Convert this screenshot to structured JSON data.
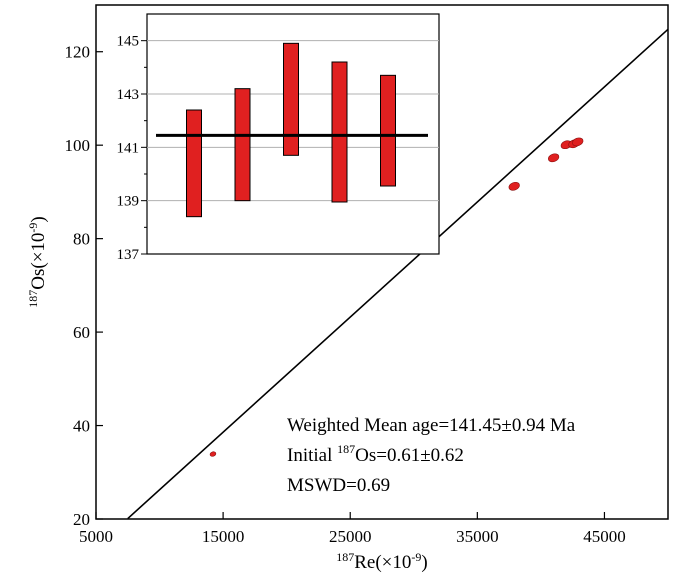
{
  "chart_data": [
    {
      "type": "scatter",
      "xlabel": {
        "sup": "187",
        "text": "Re(×10",
        "exp": "-9",
        "close": ")"
      },
      "ylabel": {
        "sup": "187",
        "text": "Os(×10",
        "exp": "-9",
        "close": ")"
      },
      "xlim": [
        5000,
        50000
      ],
      "ylim": [
        20,
        130
      ],
      "xticks": [
        "5000",
        "15000",
        "25000",
        "35000",
        "45000"
      ],
      "xtick_values": [
        5000,
        15000,
        25000,
        35000,
        45000
      ],
      "yticks": [
        "20",
        "40",
        "60",
        "80",
        "100",
        "120"
      ],
      "ytick_values": [
        20,
        40,
        60,
        80,
        100,
        120
      ],
      "grid": false,
      "series": [
        {
          "type": "scatter",
          "color": "#e02020",
          "points": [
            {
              "x": 14200,
              "y": 33.9
            },
            {
              "x": 37900,
              "y": 91.2
            },
            {
              "x": 41000,
              "y": 97.3
            },
            {
              "x": 42000,
              "y": 100.1
            },
            {
              "x": 42600,
              "y": 100.3
            },
            {
              "x": 42900,
              "y": 100.7
            }
          ]
        },
        {
          "type": "line",
          "color": "#000000",
          "x": [
            7500,
            50000
          ],
          "y": [
            20.1,
            124.8
          ]
        }
      ],
      "annotations": [
        {
          "prefix": "Weighted Mean age=141.45±0.94 Ma",
          "sup": "",
          "suffix": ""
        },
        {
          "prefix": "Initial ",
          "sup": "187",
          "suffix": "Os=0.61±0.62"
        },
        {
          "prefix": "MSWD=0.69",
          "sup": "",
          "suffix": ""
        }
      ]
    },
    {
      "type": "bar",
      "inset": true,
      "ylim": [
        137,
        146
      ],
      "yticks": [
        "137",
        "139",
        "141",
        "143",
        "145"
      ],
      "ytick_values": [
        137,
        139,
        141,
        143,
        145
      ],
      "grid": true,
      "bar_color": "#e02020",
      "bars": [
        {
          "low": 138.4,
          "high": 142.4
        },
        {
          "low": 139.0,
          "high": 143.2
        },
        {
          "low": 140.7,
          "high": 144.9
        },
        {
          "low": 138.95,
          "high": 144.2
        },
        {
          "low": 139.55,
          "high": 143.7
        }
      ],
      "mean": 141.45
    }
  ]
}
